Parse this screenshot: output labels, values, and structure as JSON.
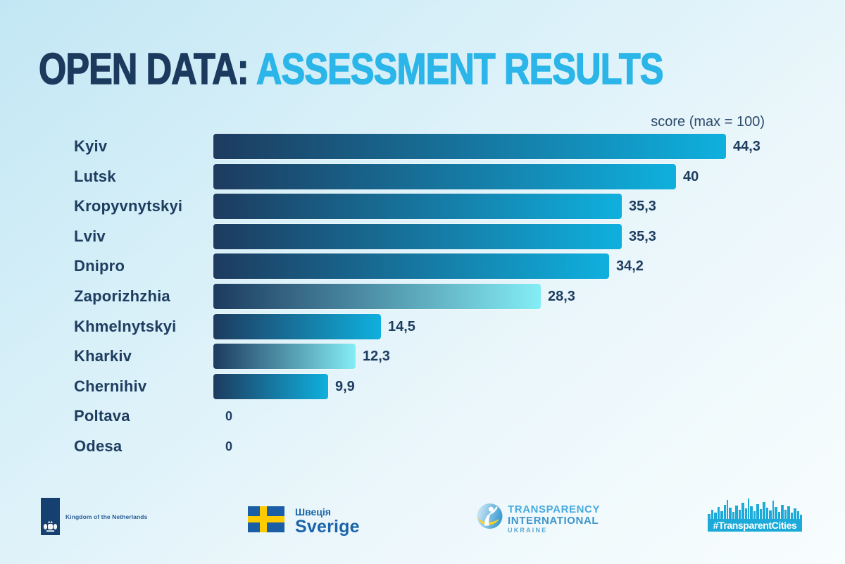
{
  "title": {
    "prefix": "OPEN DATA: ",
    "highlight": "ASSESSMENT RESULTS"
  },
  "chart_data": {
    "type": "bar",
    "orientation": "horizontal",
    "title": "OPEN DATA: ASSESSMENT RESULTS",
    "axis_note": "score (max = 100)",
    "xlabel": "score",
    "xlim": [
      0,
      100
    ],
    "categories": [
      "Kyiv",
      "Lutsk",
      "Kropyvnytskyi",
      "Lviv",
      "Dnipro",
      "Zaporizhzhia",
      "Khmelnytskyi",
      "Kharkiv",
      "Chernihiv",
      "Poltava",
      "Odesa"
    ],
    "values": [
      44.3,
      40,
      35.3,
      35.3,
      34.2,
      28.3,
      14.5,
      12.3,
      9.9,
      0,
      0
    ],
    "value_labels": [
      "44,3",
      "40",
      "35,3",
      "35,3",
      "34,2",
      "28,3",
      "14,5",
      "12,3",
      "9,9",
      "0",
      "0"
    ],
    "bar_styles": [
      "solid",
      "solid",
      "solid",
      "solid",
      "solid",
      "fade",
      "solid",
      "fade",
      "solid",
      "none",
      "none"
    ],
    "grid": false,
    "legend": false,
    "colors": {
      "bar_gradient_start": "#1d3b5f",
      "bar_gradient_end": "#0fb0de",
      "bar_fade_end": "#84edf5",
      "value_label": "#1e3d60",
      "city_label": "#1e3d60"
    }
  },
  "colors": {
    "title_dark": "#1b3a5e",
    "title_cyan": "#2bb5e8",
    "background_top": "#c2e7f4",
    "background_bottom": "#f8fdfe",
    "footer_cyan": "#1caad9",
    "netherlands_blue": "#16406f",
    "sweden_blue": "#1a5ea6",
    "sweden_yellow": "#fecb00"
  },
  "footer": {
    "netherlands": {
      "label": "Kingdom of the Netherlands"
    },
    "sweden": {
      "label_uk": "Швеція",
      "label_sv": "Sverige"
    },
    "ti": {
      "line1": "TRANSPARENCY",
      "line2": "INTERNATIONAL",
      "line3": "UKRAINE"
    },
    "hashtag": {
      "label": "#TransparentCities"
    }
  }
}
